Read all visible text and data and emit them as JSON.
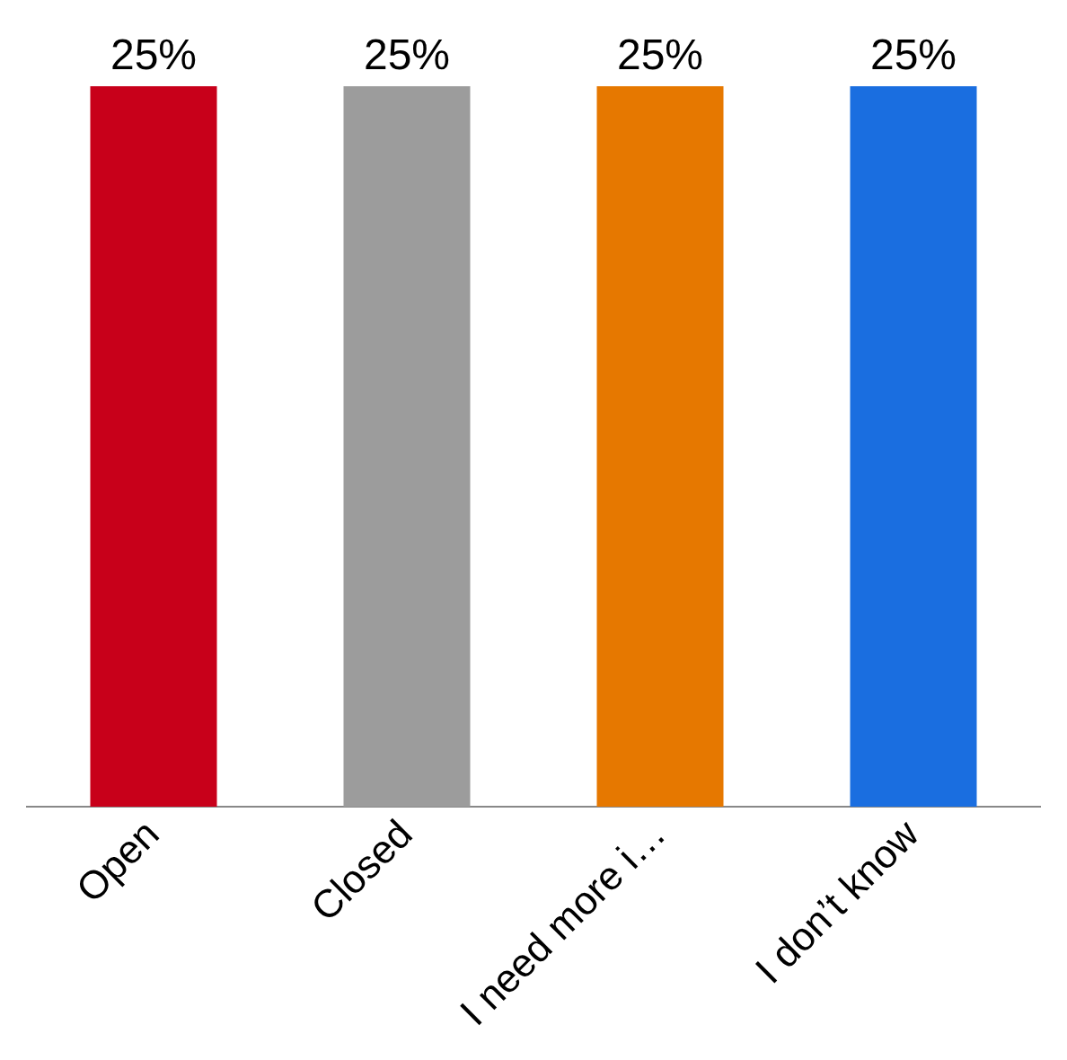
{
  "chart_data": {
    "type": "bar",
    "categories": [
      "Open",
      "Closed",
      "I need more i…",
      "I don’t know"
    ],
    "values": [
      25,
      25,
      25,
      25
    ],
    "colors": [
      "#c8001a",
      "#9c9c9c",
      "#e67800",
      "#1a6ee0"
    ],
    "value_labels": [
      "25%",
      "25%",
      "25%",
      "25%"
    ],
    "grid": false,
    "legend": false,
    "tick_labels": "x"
  }
}
